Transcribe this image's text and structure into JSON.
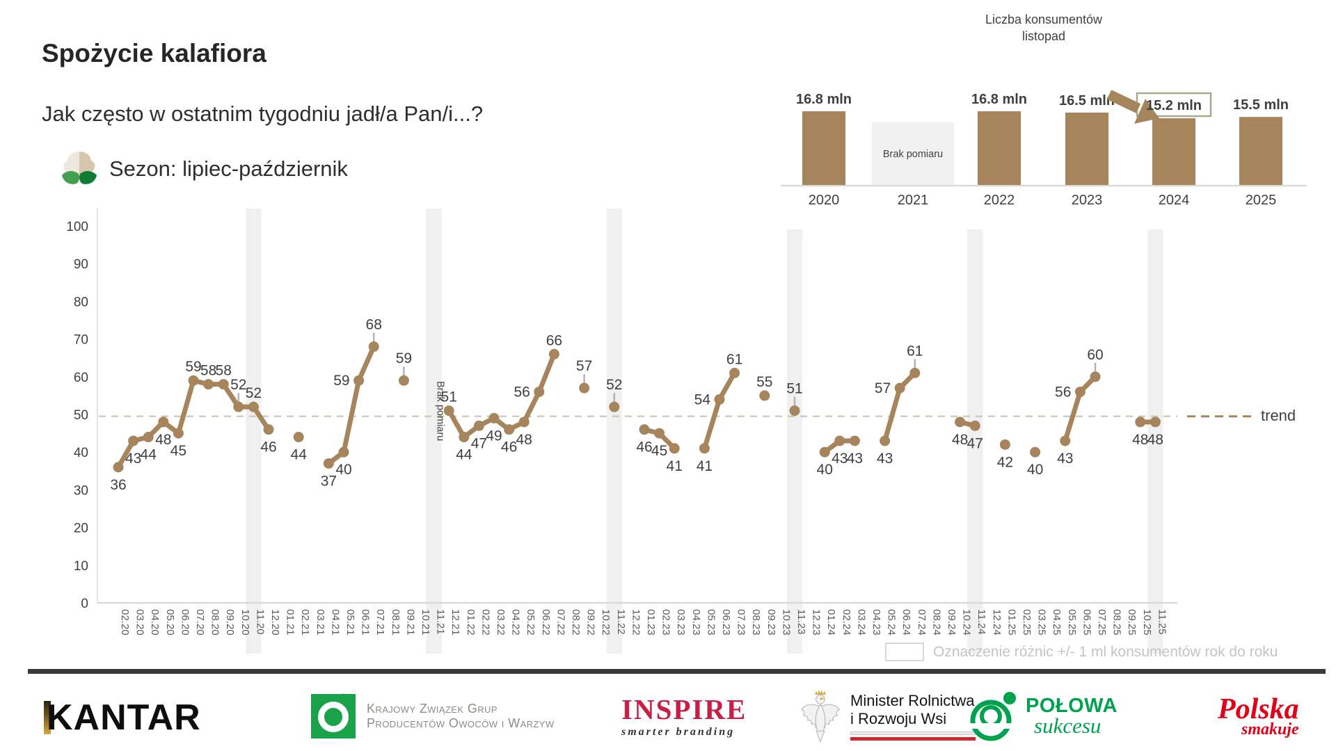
{
  "header": {
    "title": "Spożycie kalafiora",
    "subtitle": "Jak często w ostatnim tygodniu jadł/a Pan/i...?",
    "season_label": "Sezon: lipiec-październik"
  },
  "chart_data": [
    {
      "id": "consumption-line",
      "type": "line",
      "ylim": [
        0,
        100
      ],
      "yticks": [
        0,
        10,
        20,
        30,
        40,
        50,
        60,
        70,
        80,
        90,
        100
      ],
      "x": [
        "02.20",
        "03.20",
        "04.20",
        "05.20",
        "06.20",
        "07.20",
        "08.20",
        "09.20",
        "10.20",
        "11.20",
        "12.20",
        "01.21",
        "02.21",
        "03.21",
        "04.21",
        "05.21",
        "06.21",
        "07.21",
        "08.21",
        "09.21",
        "10.21",
        "11.21",
        "12.21",
        "01.22",
        "02.22",
        "03.22",
        "04.22",
        "05.22",
        "06.22",
        "07.22",
        "08.22",
        "09.22",
        "10.22",
        "11.22",
        "12.22",
        "01.23",
        "02.23",
        "03.23",
        "04.23",
        "05.23",
        "06.23",
        "07.23",
        "08.23",
        "09.23",
        "10.23",
        "11.23",
        "12.23",
        "01.24",
        "02.24",
        "03.24",
        "04.23",
        "05.24",
        "06.24",
        "07.24",
        "08.24",
        "09.24",
        "10.24",
        "11.24",
        "12.24",
        "01.25",
        "02.25",
        "03.25",
        "04.25",
        "05.25",
        "06.25",
        "07.25",
        "08.25",
        "09.25",
        "10.25",
        "11.25"
      ],
      "segments": [
        [
          {
            "m": "02.20",
            "v": 36,
            "pos": "below"
          },
          {
            "m": "03.20",
            "v": 43,
            "pos": "below"
          },
          {
            "m": "04.20",
            "v": 44,
            "pos": "below"
          },
          {
            "m": "05.20",
            "v": 48,
            "pos": "below"
          },
          {
            "m": "06.20",
            "v": 45,
            "pos": "below"
          },
          {
            "m": "07.20",
            "v": 59,
            "pos": "above"
          },
          {
            "m": "08.20",
            "v": 58,
            "pos": "above"
          },
          {
            "m": "09.20",
            "v": 58,
            "pos": "above"
          },
          {
            "m": "10.20",
            "v": 52,
            "pos": "above",
            "tick": true
          },
          {
            "m": "11.20",
            "v": 52,
            "pos": "above"
          },
          {
            "m": "12.20",
            "v": 46,
            "pos": "below"
          }
        ],
        [
          {
            "m": "02.21",
            "v": 44,
            "pos": "below"
          }
        ],
        [
          {
            "m": "04.21",
            "v": 37,
            "pos": "below"
          },
          {
            "m": "05.21",
            "v": 40,
            "pos": "below"
          },
          {
            "m": "06.21",
            "v": 59,
            "pos": "left"
          },
          {
            "m": "07.21",
            "v": 68,
            "pos": "above",
            "tick": true
          }
        ],
        [
          {
            "m": "09.21",
            "v": 59,
            "pos": "above",
            "tick": true
          }
        ],
        [
          {
            "m": "12.21",
            "v": 51,
            "pos": "above"
          },
          {
            "m": "01.22",
            "v": 44,
            "pos": "below"
          },
          {
            "m": "02.22",
            "v": 47,
            "pos": "below"
          },
          {
            "m": "03.22",
            "v": 49,
            "pos": "below"
          },
          {
            "m": "04.22",
            "v": 46,
            "pos": "below"
          },
          {
            "m": "05.22",
            "v": 48,
            "pos": "below"
          },
          {
            "m": "06.22",
            "v": 56,
            "pos": "left"
          },
          {
            "m": "07.22",
            "v": 66,
            "pos": "above"
          }
        ],
        [
          {
            "m": "09.22",
            "v": 57,
            "pos": "above",
            "tick": true
          }
        ],
        [
          {
            "m": "11.22",
            "v": 52,
            "pos": "above",
            "tick": true
          }
        ],
        [
          {
            "m": "01.23",
            "v": 46,
            "pos": "below"
          },
          {
            "m": "02.23",
            "v": 45,
            "pos": "below"
          },
          {
            "m": "03.23",
            "v": 41,
            "pos": "below"
          }
        ],
        [
          {
            "m": "05.23",
            "v": 41,
            "pos": "below"
          },
          {
            "m": "06.23",
            "v": 54,
            "pos": "left"
          },
          {
            "m": "07.23",
            "v": 61,
            "pos": "above"
          }
        ],
        [
          {
            "m": "09.23",
            "v": 55,
            "pos": "above"
          }
        ],
        [
          {
            "m": "11.23",
            "v": 51,
            "pos": "above",
            "tick": true
          }
        ],
        [
          {
            "m": "01.24",
            "v": 40,
            "pos": "below"
          },
          {
            "m": "02.24",
            "v": 43,
            "pos": "below"
          },
          {
            "m": "03.24",
            "v": 43,
            "pos": "below"
          }
        ],
        [
          {
            "m": "05.24",
            "v": 43,
            "pos": "below"
          },
          {
            "m": "06.24",
            "v": 57,
            "pos": "left"
          },
          {
            "m": "07.24",
            "v": 61,
            "pos": "above",
            "tick": true
          }
        ],
        [
          {
            "m": "10.24",
            "v": 48,
            "pos": "below"
          },
          {
            "m": "11.24",
            "v": 47,
            "pos": "below"
          }
        ],
        [
          {
            "m": "01.25",
            "v": 42,
            "pos": "below"
          }
        ],
        [
          {
            "m": "03.25",
            "v": 40,
            "pos": "below"
          }
        ],
        [
          {
            "m": "05.25",
            "v": 43,
            "pos": "below"
          },
          {
            "m": "06.25",
            "v": 56,
            "pos": "left"
          },
          {
            "m": "07.25",
            "v": 60,
            "pos": "above",
            "tick": true
          }
        ],
        [
          {
            "m": "10.25",
            "v": 48,
            "pos": "below"
          },
          {
            "m": "11.25",
            "v": 48,
            "pos": "below"
          }
        ]
      ],
      "trend": {
        "value": 49.5,
        "label": "trend"
      },
      "november_bands": [
        "11.20",
        "11.21",
        "11.22",
        "11.23",
        "11.24",
        "11.25"
      ],
      "no_measurement": {
        "month": "11.21",
        "label": "Brak pomiaru"
      },
      "diff_legend": "Oznaczenie różnic +/- 1 ml konsumentów rok do roku"
    },
    {
      "id": "consumers-november",
      "type": "bar",
      "title": "Liczba konsumentów",
      "subtitle": "listopad",
      "categories": [
        "2020",
        "2021",
        "2022",
        "2023",
        "2024",
        "2025"
      ],
      "values": [
        16.8,
        null,
        16.8,
        16.5,
        15.2,
        15.5
      ],
      "bar_labels": [
        "16.8 mln",
        "Brak pomiaru",
        "16.8 mln",
        "16.5 mln",
        "15.2 mln",
        "15.5 mln"
      ],
      "no_measurement_label": "Brak pomiaru",
      "highlighted_category": "2024"
    }
  ],
  "colors": {
    "series_brown": "#A6855D",
    "band_gray": "#F0F0F0",
    "trend_dash": "#C9C5B3",
    "tick_gray": "#B3B3B3",
    "axis_gray": "#D9D9D9",
    "label_dark": "#3F3F3F",
    "xlabel_gray": "#595959",
    "legend_gray": "#C4C4C4",
    "highlight_box_border": "#A9A98F"
  },
  "footer": {
    "logos": [
      {
        "id": "kantar",
        "text": "KANTAR"
      },
      {
        "id": "kzgpow",
        "line1": "Krajowy Związek Grup",
        "line2": "Producentów Owoców i Warzyw"
      },
      {
        "id": "inspire",
        "text": "INSPIRE",
        "tagline": "smarter branding"
      },
      {
        "id": "minister",
        "line1": "Minister Rolnictwa",
        "line2": "i Rozwoju Wsi"
      },
      {
        "id": "polowa",
        "text": "POŁOWA",
        "tagline": "sukcesu"
      },
      {
        "id": "polska",
        "text": "Polska",
        "tagline": "smakuje"
      }
    ]
  }
}
